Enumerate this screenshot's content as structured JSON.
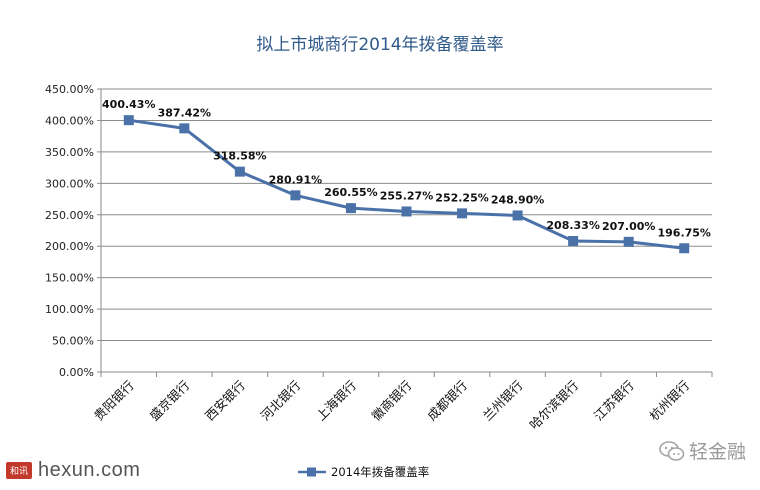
{
  "chart_data": {
    "type": "line",
    "title": "拟上市城商行2014年拨备覆盖率",
    "categories": [
      "贵阳银行",
      "盛京银行",
      "西安银行",
      "河北银行",
      "上海银行",
      "徽商银行",
      "成都银行",
      "兰州银行",
      "哈尔滨银行",
      "江苏银行",
      "杭州银行"
    ],
    "series": [
      {
        "name": "2014年拨备覆盖率",
        "values": [
          400.43,
          387.42,
          318.58,
          280.91,
          260.55,
          255.27,
          252.25,
          248.9,
          208.33,
          207.0,
          196.75
        ],
        "labels": [
          "400.43%",
          "387.42%",
          "318.58%",
          "280.91%",
          "260.55%",
          "255.27%",
          "252.25%",
          "248.90%",
          "208.33%",
          "207.00%",
          "196.75%"
        ]
      }
    ],
    "ylim": [
      0,
      450
    ],
    "yticks": [
      0,
      50,
      100,
      150,
      200,
      250,
      300,
      350,
      400,
      450
    ],
    "ytick_labels": [
      "0.00%",
      "50.00%",
      "100.00%",
      "150.00%",
      "200.00%",
      "250.00%",
      "300.00%",
      "350.00%",
      "400.00%",
      "450.00%"
    ],
    "xlabel": "",
    "ylabel": "",
    "grid": true,
    "legend_position": "bottom-center",
    "color": "#4a72a8"
  },
  "watermark": {
    "left_logo": "和讯",
    "left_site": "hexun.com",
    "right_icon": "wechat-icon",
    "right_name": "轻金融"
  }
}
